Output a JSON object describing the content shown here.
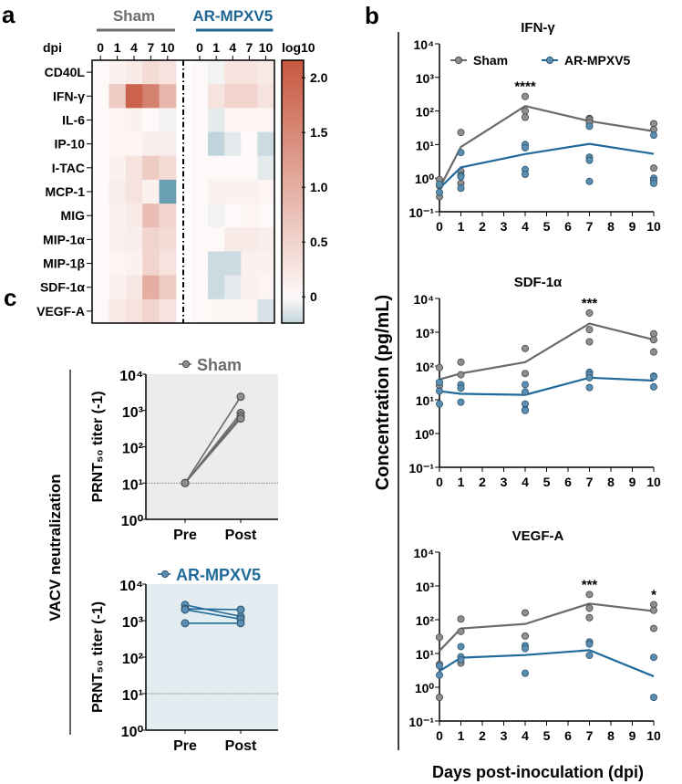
{
  "panel_labels": {
    "a": "a",
    "b": "b",
    "c": "c"
  },
  "chart_data": [
    {
      "type": "heatmap",
      "panel": "a",
      "groups": [
        {
          "name": "Sham",
          "color": "#6d6d6d"
        },
        {
          "name": "AR-MPXV5",
          "color": "#1f6693"
        }
      ],
      "x_label": "dpi",
      "columns": [
        "0",
        "1",
        "4",
        "7",
        "10"
      ],
      "rows": [
        "CD40L",
        "IFN-γ",
        "IL-6",
        "IP-10",
        "I-TAC",
        "MCP-1",
        "MIG",
        "MIP-1α",
        "MIP-1β",
        "SDF-1α",
        "VEGF-A"
      ],
      "values": {
        "Sham": [
          [
            0,
            0.1,
            0.2,
            0.4,
            0.3
          ],
          [
            0,
            0.6,
            2.0,
            1.6,
            0.9
          ],
          [
            0,
            0.05,
            0.1,
            0,
            -0.05
          ],
          [
            0,
            0.05,
            0.05,
            0.15,
            0.15
          ],
          [
            0,
            0.1,
            0.3,
            0.6,
            0.4
          ],
          [
            0,
            0.15,
            0.3,
            0.1,
            -0.6
          ],
          [
            0,
            0.1,
            0.2,
            0.8,
            0.5
          ],
          [
            0,
            0.1,
            0.15,
            0.5,
            0.4
          ],
          [
            0,
            0.05,
            0.1,
            0.5,
            0.3
          ],
          [
            0,
            0.1,
            0.25,
            1.0,
            0.6
          ],
          [
            0,
            0.2,
            0.3,
            0.5,
            0.3
          ]
        ],
        "AR-MPXV5": [
          [
            0,
            -0.05,
            0.3,
            0.3,
            0.2
          ],
          [
            0,
            0.3,
            0.5,
            0.5,
            0.3
          ],
          [
            0,
            -0.1,
            0.05,
            0.05,
            0.05
          ],
          [
            0,
            -0.25,
            -0.1,
            0,
            -0.2
          ],
          [
            0,
            0,
            0,
            0,
            -0.1
          ],
          [
            0,
            0.1,
            0.1,
            0.1,
            0.05
          ],
          [
            0,
            -0.05,
            0,
            0.05,
            0
          ],
          [
            0,
            0,
            0.2,
            0.2,
            0.15
          ],
          [
            0,
            -0.2,
            -0.2,
            0.1,
            0.1
          ],
          [
            0,
            -0.2,
            -0.1,
            0.1,
            0.05
          ],
          [
            0,
            0.02,
            0.02,
            0.05,
            -0.15
          ]
        ]
      },
      "colorbar": {
        "title": "log10",
        "ticks": [
          "2.0",
          "1.5",
          "1.0",
          "0.5",
          "0"
        ],
        "tick_values": [
          2.0,
          1.5,
          1.0,
          0.5,
          0
        ],
        "range": [
          -0.24,
          2.16
        ],
        "high_color": "#c6543b",
        "low_color": "#6a9fb3"
      }
    },
    {
      "type": "line",
      "panel": "b",
      "ylabel": "Concentration (pg/mL)",
      "xlabel": "Days post-inoculation (dpi)",
      "yscale": "log",
      "ylim": [
        0.1,
        10000
      ],
      "xlim": [
        0,
        10
      ],
      "xticks": [
        "0",
        "1",
        "2",
        "3",
        "4",
        "5",
        "6",
        "7",
        "8",
        "9",
        "10"
      ],
      "yticks": [
        "10⁻¹",
        "10⁰",
        "10¹",
        "10²",
        "10³",
        "10⁴"
      ],
      "legend": [
        {
          "name": "Sham",
          "color": "#6b6b6b"
        },
        {
          "name": "AR-MPXV5",
          "color": "#1f6a9a"
        }
      ],
      "subplots": [
        {
          "title": "IFN-γ",
          "series": [
            {
              "name": "Sham",
              "line_x": [
                0,
                1,
                4,
                7,
                10
              ],
              "line_y": [
                0.5,
                8.5,
                140,
                50,
                25
              ],
              "points": [
                [
                  0,
                  0.9
                ],
                [
                  0,
                  0.6
                ],
                [
                  0,
                  0.28
                ],
                [
                  1,
                  23
                ],
                [
                  1,
                  1.6
                ],
                [
                  1,
                  0.7
                ],
                [
                  4,
                  270
                ],
                [
                  4,
                  100
                ],
                [
                  4,
                  65
                ],
                [
                  7,
                  60
                ],
                [
                  7,
                  55
                ],
                [
                  7,
                  45
                ],
                [
                  10,
                  42
                ],
                [
                  10,
                  28
                ],
                [
                  10,
                  2.0
                ]
              ]
            },
            {
              "name": "AR-MPXV5",
              "line_x": [
                0,
                1,
                4,
                7,
                10
              ],
              "line_y": [
                0.5,
                2.1,
                5.2,
                10.5,
                5.3
              ],
              "points": [
                [
                  0,
                  0.65
                ],
                [
                  0,
                  0.38
                ],
                [
                  1,
                  5.8
                ],
                [
                  1,
                  1.2
                ],
                [
                  1,
                  1.1
                ],
                [
                  1,
                  0.5
                ],
                [
                  4,
                  10
                ],
                [
                  4,
                  8
                ],
                [
                  4,
                  1.8
                ],
                [
                  4,
                  1.3
                ],
                [
                  7,
                  35
                ],
                [
                  7,
                  4.2
                ],
                [
                  7,
                  3.4
                ],
                [
                  7,
                  0.8
                ],
                [
                  10,
                  19
                ],
                [
                  10,
                  1.0
                ],
                [
                  10,
                  0.85
                ],
                [
                  10,
                  0.7
                ]
              ]
            }
          ],
          "significance": [
            {
              "x": 4,
              "label": "****"
            }
          ]
        },
        {
          "title": "SDF-1α",
          "series": [
            {
              "name": "Sham",
              "line_x": [
                0,
                1,
                4,
                7,
                10
              ],
              "line_y": [
                40,
                60,
                130,
                1800,
                600
              ],
              "points": [
                [
                  0,
                  90
                ],
                [
                  0,
                  26
                ],
                [
                  1,
                  130
                ],
                [
                  1,
                  55
                ],
                [
                  4,
                  330
                ],
                [
                  4,
                  60
                ],
                [
                  7,
                  3700
                ],
                [
                  7,
                  1200
                ],
                [
                  7,
                  520
                ],
                [
                  10,
                  900
                ],
                [
                  10,
                  600
                ],
                [
                  10,
                  260
                ]
              ]
            },
            {
              "name": "AR-MPXV5",
              "line_x": [
                0,
                1,
                4,
                7,
                10
              ],
              "line_y": [
                18,
                15,
                14,
                45,
                37
              ],
              "points": [
                [
                  0,
                  33
                ],
                [
                  0,
                  18
                ],
                [
                  0,
                  7.5
                ],
                [
                  1,
                  28
                ],
                [
                  1,
                  22
                ],
                [
                  1,
                  8.5
                ],
                [
                  4,
                  28
                ],
                [
                  4,
                  17
                ],
                [
                  4,
                  7.5
                ],
                [
                  4,
                  5
                ],
                [
                  4,
                  4.8
                ],
                [
                  7,
                  65
                ],
                [
                  7,
                  55
                ],
                [
                  7,
                  45
                ],
                [
                  7,
                  23
                ],
                [
                  10,
                  50
                ],
                [
                  10,
                  48
                ],
                [
                  10,
                  24
                ]
              ]
            }
          ],
          "significance": [
            {
              "x": 7,
              "label": "***"
            }
          ]
        },
        {
          "title": "VEGF-A",
          "series": [
            {
              "name": "Sham",
              "line_x": [
                0,
                1,
                4,
                7,
                10
              ],
              "line_y": [
                12,
                55,
                75,
                300,
                180
              ],
              "points": [
                [
                  0,
                  30
                ],
                [
                  0,
                  4.8
                ],
                [
                  0,
                  0.5
                ],
                [
                  1,
                  105
                ],
                [
                  1,
                  45
                ],
                [
                  1,
                  5.2
                ],
                [
                  4,
                  160
                ],
                [
                  4,
                  33
                ],
                [
                  7,
                  560
                ],
                [
                  7,
                  220
                ],
                [
                  7,
                  115
                ],
                [
                  10,
                  280
                ],
                [
                  10,
                  190
                ],
                [
                  10,
                  55
                ]
              ]
            },
            {
              "name": "AR-MPXV5",
              "line_x": [
                0,
                1,
                4,
                7,
                10
              ],
              "line_y": [
                3,
                7.5,
                9,
                12.5,
                2.1
              ],
              "points": [
                [
                  0,
                  4.3
                ],
                [
                  0,
                  2.3
                ],
                [
                  1,
                  16
                ],
                [
                  1,
                  8
                ],
                [
                  1,
                  6.5
                ],
                [
                  4,
                  17
                ],
                [
                  4,
                  14
                ],
                [
                  4,
                  2.6
                ],
                [
                  7,
                  22
                ],
                [
                  7,
                  19
                ],
                [
                  7,
                  8.8
                ],
                [
                  10,
                  7.7
                ],
                [
                  10,
                  0.5
                ]
              ]
            }
          ],
          "significance": [
            {
              "x": 7,
              "label": "***"
            },
            {
              "x": 10,
              "label": "*"
            }
          ]
        }
      ]
    },
    {
      "type": "line",
      "panel": "c",
      "group_label": "VACV neutralization",
      "ylabel": "PRNT₅₀ titer (-1)",
      "yscale": "log",
      "ylim": [
        1,
        10000
      ],
      "categories": [
        "Pre",
        "Post"
      ],
      "yticks": [
        "10⁰",
        "10¹",
        "10²",
        "10³",
        "10⁴"
      ],
      "reference_line": 10,
      "subplots": [
        {
          "name": "Sham",
          "color": "#6b6b6b",
          "background": "#ececec",
          "pairs": [
            [
              10,
              2400
            ],
            [
              10,
              850
            ],
            [
              10,
              700
            ],
            [
              10,
              600
            ]
          ]
        },
        {
          "name": "AR-MPXV5",
          "color": "#1f6a9a",
          "background": "#e3ecf1",
          "pairs": [
            [
              2700,
              1300
            ],
            [
              2100,
              2000
            ],
            [
              2000,
              1100
            ],
            [
              850,
              850
            ]
          ]
        }
      ]
    }
  ]
}
